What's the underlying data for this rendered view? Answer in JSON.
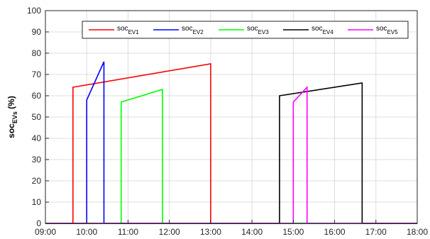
{
  "chart_data": {
    "type": "line",
    "title": "",
    "xlabel": "",
    "ylabel": {
      "main": "soc",
      "sub": "EVs",
      "tail": " (%)"
    },
    "xlim": [
      "09:00",
      "18:00"
    ],
    "ylim": [
      0,
      100
    ],
    "grid": true,
    "legend_position": "top",
    "x_ticks": [
      "09:00",
      "10:00",
      "11:00",
      "12:00",
      "13:00",
      "14:00",
      "15:00",
      "16:00",
      "17:00",
      "18:00"
    ],
    "y_ticks": [
      0,
      10,
      20,
      30,
      40,
      50,
      60,
      70,
      80,
      90,
      100
    ],
    "series": [
      {
        "name": "soc",
        "sub": "EV1",
        "color": "#ff0000",
        "x": [
          "09:00",
          "09:40",
          "09:40",
          "13:00",
          "13:00",
          "18:00"
        ],
        "y": [
          0,
          0,
          64,
          75,
          0,
          0
        ]
      },
      {
        "name": "soc",
        "sub": "EV2",
        "color": "#0000ff",
        "x": [
          "09:00",
          "10:00",
          "10:00",
          "10:25",
          "10:25",
          "18:00"
        ],
        "y": [
          0,
          0,
          58,
          76,
          0,
          0
        ]
      },
      {
        "name": "soc",
        "sub": "EV3",
        "color": "#00ff00",
        "x": [
          "09:00",
          "10:50",
          "10:50",
          "11:50",
          "11:50",
          "18:00"
        ],
        "y": [
          0,
          0,
          57,
          63,
          0,
          0
        ]
      },
      {
        "name": "soc",
        "sub": "EV4",
        "color": "#000000",
        "x": [
          "09:00",
          "14:40",
          "14:40",
          "16:40",
          "16:40",
          "18:00"
        ],
        "y": [
          0,
          0,
          60,
          66,
          0,
          0
        ]
      },
      {
        "name": "soc",
        "sub": "EV5",
        "color": "#ff00ff",
        "x": [
          "09:00",
          "15:00",
          "15:00",
          "15:20",
          "15:20",
          "18:00"
        ],
        "y": [
          0,
          0,
          57,
          64,
          0,
          0
        ]
      }
    ]
  }
}
